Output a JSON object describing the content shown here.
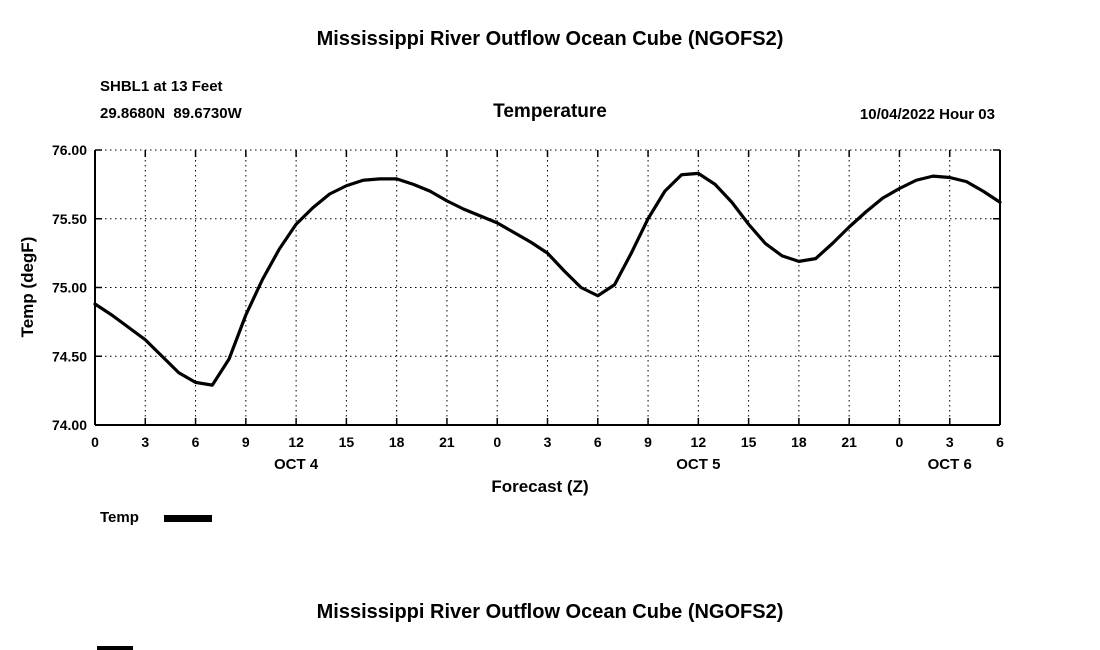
{
  "header": {
    "title": "Mississippi River Outflow Ocean Cube (NGOFS2)",
    "station": "SHBL1 at 13 Feet",
    "coordinates": "29.8680N  89.6730W",
    "plot_title": "Temperature",
    "run_info": "10/04/2022 Hour 03"
  },
  "legend": {
    "temp_label": "Temp"
  },
  "footer": {
    "next_chart_title": "Mississippi River Outflow Ocean Cube (NGOFS2)"
  },
  "chart_data": {
    "type": "line",
    "title": "Temperature",
    "xlabel": "Forecast (Z)",
    "ylabel": "Temp (degF)",
    "ylim": [
      74.0,
      76.0
    ],
    "yticks": [
      74.0,
      74.5,
      75.0,
      75.5,
      76.0
    ],
    "ytick_labels": [
      "74.00",
      "74.50",
      "75.00",
      "75.50",
      "76.00"
    ],
    "xlim": [
      0,
      54
    ],
    "xticks": [
      0,
      3,
      6,
      9,
      12,
      15,
      18,
      21,
      24,
      27,
      30,
      33,
      36,
      39,
      42,
      45,
      48,
      51,
      54
    ],
    "xtick_labels": [
      "0",
      "3",
      "6",
      "9",
      "12",
      "15",
      "18",
      "21",
      "0",
      "3",
      "6",
      "9",
      "12",
      "15",
      "18",
      "21",
      "0",
      "3",
      "6"
    ],
    "date_labels": [
      {
        "label": "OCT 4",
        "hour": 12
      },
      {
        "label": "OCT 5",
        "hour": 36
      },
      {
        "label": "OCT 6",
        "hour": 51
      }
    ],
    "grid": "dotted",
    "legend_position": "below-left",
    "line_color": "#000000",
    "series": [
      {
        "name": "Temp",
        "x": [
          0,
          1,
          2,
          3,
          4,
          5,
          6,
          7,
          8,
          9,
          10,
          11,
          12,
          13,
          14,
          15,
          16,
          17,
          18,
          19,
          20,
          21,
          22,
          23,
          24,
          25,
          26,
          27,
          28,
          29,
          30,
          31,
          32,
          33,
          34,
          35,
          36,
          37,
          38,
          39,
          40,
          41,
          42,
          43,
          44,
          45,
          46,
          47,
          48,
          49,
          50,
          51,
          52,
          53,
          54
        ],
        "values": [
          74.88,
          74.8,
          74.71,
          74.62,
          74.5,
          74.38,
          74.31,
          74.29,
          74.48,
          74.8,
          75.06,
          75.28,
          75.46,
          75.58,
          75.68,
          75.74,
          75.78,
          75.79,
          75.79,
          75.75,
          75.7,
          75.63,
          75.57,
          75.52,
          75.47,
          75.4,
          75.33,
          75.25,
          75.12,
          75.0,
          74.94,
          75.02,
          75.25,
          75.5,
          75.7,
          75.82,
          75.83,
          75.75,
          75.62,
          75.46,
          75.32,
          75.23,
          75.19,
          75.21,
          75.32,
          75.44,
          75.55,
          75.65,
          75.72,
          75.78,
          75.81,
          75.8,
          75.77,
          75.7,
          75.62
        ]
      }
    ]
  }
}
